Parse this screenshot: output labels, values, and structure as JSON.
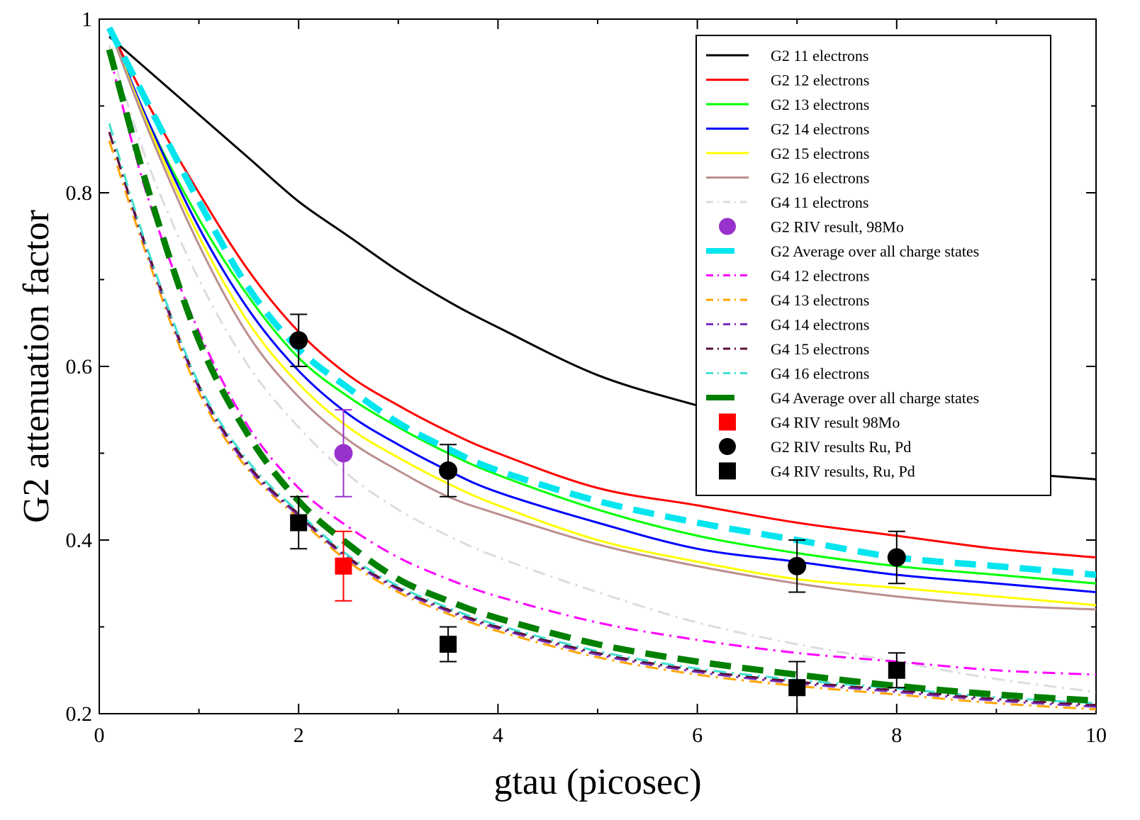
{
  "chart_data": {
    "type": "line",
    "xlabel": "gtau (picosec)",
    "ylabel": "G2 attenuation factor",
    "xlim": [
      0,
      10
    ],
    "ylim": [
      0.2,
      1
    ],
    "x_ticks": [
      0,
      2,
      4,
      6,
      8,
      10
    ],
    "x_tick_labels": [
      "0",
      "2",
      "4",
      "6",
      "8",
      "10"
    ],
    "y_ticks": [
      0.2,
      0.4,
      0.6,
      0.8,
      1
    ],
    "y_tick_labels": [
      "0.2",
      "0.4",
      "0.6",
      "0.8",
      "1"
    ],
    "grid": false,
    "legend_position": "top-right",
    "series": [
      {
        "name": "G2 11 electrons",
        "kind": "line",
        "color": "#000000",
        "style": "solid",
        "x": [
          0.1,
          0.5,
          1,
          1.5,
          2,
          2.5,
          3,
          3.5,
          4,
          5,
          6,
          7,
          8,
          9,
          10
        ],
        "y": [
          0.98,
          0.94,
          0.89,
          0.84,
          0.79,
          0.75,
          0.71,
          0.675,
          0.645,
          0.59,
          0.555,
          0.525,
          0.5,
          0.48,
          0.47
        ]
      },
      {
        "name": "G2 12 electrons",
        "kind": "line",
        "color": "#ff0000",
        "style": "solid",
        "x": [
          0.1,
          0.5,
          1,
          1.5,
          2,
          2.5,
          3,
          3.5,
          4,
          5,
          6,
          7,
          8,
          9,
          10
        ],
        "y": [
          0.99,
          0.9,
          0.8,
          0.71,
          0.64,
          0.59,
          0.555,
          0.525,
          0.5,
          0.46,
          0.44,
          0.42,
          0.405,
          0.39,
          0.38
        ]
      },
      {
        "name": "G2 13 electrons",
        "kind": "line",
        "color": "#00ff00",
        "style": "solid",
        "x": [
          0.1,
          0.5,
          1,
          1.5,
          2,
          2.5,
          3,
          3.5,
          4,
          5,
          6,
          7,
          8,
          9,
          10
        ],
        "y": [
          0.99,
          0.88,
          0.77,
          0.68,
          0.61,
          0.565,
          0.53,
          0.5,
          0.475,
          0.435,
          0.405,
          0.385,
          0.37,
          0.36,
          0.35
        ]
      },
      {
        "name": "G2 14 electrons",
        "kind": "line",
        "color": "#0000ff",
        "style": "solid",
        "x": [
          0.1,
          0.5,
          1,
          1.5,
          2,
          2.5,
          3,
          3.5,
          4,
          5,
          6,
          7,
          8,
          9,
          10
        ],
        "y": [
          0.99,
          0.88,
          0.76,
          0.665,
          0.595,
          0.545,
          0.51,
          0.48,
          0.455,
          0.42,
          0.39,
          0.375,
          0.36,
          0.35,
          0.34
        ]
      },
      {
        "name": "G2 15 electrons",
        "kind": "line",
        "color": "#ffff00",
        "style": "solid",
        "x": [
          0.1,
          0.5,
          1,
          1.5,
          2,
          2.5,
          3,
          3.5,
          4,
          5,
          6,
          7,
          8,
          9,
          10
        ],
        "y": [
          0.99,
          0.875,
          0.75,
          0.65,
          0.58,
          0.53,
          0.495,
          0.465,
          0.44,
          0.4,
          0.375,
          0.355,
          0.345,
          0.335,
          0.325
        ]
      },
      {
        "name": "G2 16 electrons",
        "kind": "line",
        "color": "#bc8f8f",
        "style": "solid",
        "x": [
          0.1,
          0.5,
          1,
          1.5,
          2,
          2.5,
          3,
          3.5,
          4,
          5,
          6,
          7,
          8,
          9,
          10
        ],
        "y": [
          0.99,
          0.87,
          0.74,
          0.635,
          0.565,
          0.515,
          0.48,
          0.45,
          0.43,
          0.395,
          0.37,
          0.35,
          0.335,
          0.325,
          0.32
        ]
      },
      {
        "name": "G4 11 electrons",
        "kind": "line",
        "color": "#dcdcdc",
        "style": "dashdot",
        "x": [
          0.1,
          0.5,
          1,
          1.5,
          2,
          2.5,
          3,
          3.5,
          4,
          5,
          6,
          7,
          8,
          9,
          10
        ],
        "y": [
          0.97,
          0.83,
          0.7,
          0.6,
          0.53,
          0.475,
          0.435,
          0.405,
          0.38,
          0.34,
          0.305,
          0.28,
          0.26,
          0.24,
          0.225
        ]
      },
      {
        "name": "G2 Average over all charge states",
        "kind": "line",
        "color": "#00e5ee",
        "style": "longdash",
        "x": [
          0.1,
          0.5,
          1,
          1.5,
          2,
          2.5,
          3,
          3.5,
          4,
          5,
          6,
          7,
          8,
          9,
          10
        ],
        "y": [
          0.99,
          0.9,
          0.79,
          0.69,
          0.62,
          0.575,
          0.535,
          0.505,
          0.48,
          0.445,
          0.42,
          0.4,
          0.38,
          0.37,
          0.36
        ]
      },
      {
        "name": "G4 12 electrons",
        "kind": "line",
        "color": "#ff00ff",
        "style": "dashdot",
        "x": [
          0.1,
          0.5,
          1,
          1.5,
          2,
          2.5,
          3,
          3.5,
          4,
          5,
          6,
          7,
          8,
          9,
          10
        ],
        "y": [
          0.96,
          0.79,
          0.64,
          0.53,
          0.46,
          0.415,
          0.38,
          0.355,
          0.335,
          0.305,
          0.285,
          0.27,
          0.26,
          0.25,
          0.245
        ]
      },
      {
        "name": "G4 13 electrons",
        "kind": "line",
        "color": "#ffa500",
        "style": "dashdot",
        "x": [
          0.1,
          0.5,
          1,
          1.5,
          2,
          2.5,
          3,
          3.5,
          4,
          5,
          6,
          7,
          8,
          9,
          10
        ],
        "y": [
          0.86,
          0.72,
          0.57,
          0.48,
          0.425,
          0.375,
          0.34,
          0.315,
          0.295,
          0.265,
          0.245,
          0.232,
          0.222,
          0.212,
          0.205
        ]
      },
      {
        "name": "G4 14 electrons",
        "kind": "line",
        "color": "#7b2fbe",
        "style": "dashdot",
        "x": [
          0.1,
          0.5,
          1,
          1.5,
          2,
          2.5,
          3,
          3.5,
          4,
          5,
          6,
          7,
          8,
          9,
          10
        ],
        "y": [
          0.87,
          0.725,
          0.575,
          0.483,
          0.428,
          0.378,
          0.343,
          0.318,
          0.298,
          0.268,
          0.248,
          0.235,
          0.225,
          0.215,
          0.208
        ]
      },
      {
        "name": "G4 15 electrons",
        "kind": "line",
        "color": "#5a0f3a",
        "style": "dashdot",
        "x": [
          0.1,
          0.5,
          1,
          1.5,
          2,
          2.5,
          3,
          3.5,
          4,
          5,
          6,
          7,
          8,
          9,
          10
        ],
        "y": [
          0.87,
          0.728,
          0.578,
          0.486,
          0.43,
          0.38,
          0.345,
          0.32,
          0.3,
          0.27,
          0.25,
          0.237,
          0.227,
          0.217,
          0.21
        ]
      },
      {
        "name": "G4 16 electrons",
        "kind": "line",
        "color": "#40e0d0",
        "style": "dashdot",
        "x": [
          0.1,
          0.5,
          1,
          1.5,
          2,
          2.5,
          3,
          3.5,
          4,
          5,
          6,
          7,
          8,
          9,
          10
        ],
        "y": [
          0.88,
          0.73,
          0.58,
          0.49,
          0.432,
          0.382,
          0.347,
          0.322,
          0.302,
          0.272,
          0.252,
          0.239,
          0.229,
          0.219,
          0.212
        ]
      },
      {
        "name": "G4 Average over all charge states",
        "kind": "line",
        "color": "#008000",
        "style": "longdash",
        "x": [
          0.1,
          0.5,
          1,
          1.5,
          2,
          2.5,
          3,
          3.5,
          4,
          5,
          6,
          7,
          8,
          9,
          10
        ],
        "y": [
          0.965,
          0.8,
          0.63,
          0.52,
          0.445,
          0.395,
          0.355,
          0.33,
          0.31,
          0.28,
          0.26,
          0.245,
          0.232,
          0.222,
          0.215
        ]
      },
      {
        "name": "G2 RIV result, 98Mo",
        "kind": "points",
        "marker": "circle",
        "color": "#9932cc",
        "points": [
          {
            "x": 2.45,
            "y": 0.5,
            "err": 0.05
          }
        ]
      },
      {
        "name": "G4 RIV result 98Mo",
        "kind": "points",
        "marker": "square",
        "color": "#ff0000",
        "points": [
          {
            "x": 2.45,
            "y": 0.37,
            "err": 0.04
          }
        ]
      },
      {
        "name": "G2 RIV results Ru, Pd",
        "kind": "points",
        "marker": "circle",
        "color": "#000000",
        "points": [
          {
            "x": 2.0,
            "y": 0.63,
            "err": 0.03
          },
          {
            "x": 3.5,
            "y": 0.48,
            "err": 0.03
          },
          {
            "x": 7.0,
            "y": 0.37,
            "err": 0.03
          },
          {
            "x": 8.0,
            "y": 0.38,
            "err": 0.03
          }
        ]
      },
      {
        "name": "G4 RIV results, Ru, Pd",
        "kind": "points",
        "marker": "square",
        "color": "#000000",
        "points": [
          {
            "x": 2.0,
            "y": 0.42,
            "err": 0.03
          },
          {
            "x": 3.5,
            "y": 0.28,
            "err": 0.02
          },
          {
            "x": 7.0,
            "y": 0.23,
            "err": 0.03
          },
          {
            "x": 8.0,
            "y": 0.25,
            "err": 0.02
          }
        ]
      }
    ],
    "legend_order": [
      "G2 11 electrons",
      "G2 12 electrons",
      "G2 13 electrons",
      "G2 14 electrons",
      "G2 15 electrons",
      "G2 16 electrons",
      "G4 11 electrons",
      "G2 RIV result, 98Mo",
      "G2 Average over all charge states",
      "G4 12 electrons",
      "G4 13 electrons",
      "G4 14 electrons",
      "G4 15 electrons",
      "G4 16 electrons",
      "G4 Average over all charge states",
      "G4 RIV result 98Mo",
      "G2 RIV results Ru, Pd",
      "G4 RIV results, Ru, Pd"
    ]
  }
}
